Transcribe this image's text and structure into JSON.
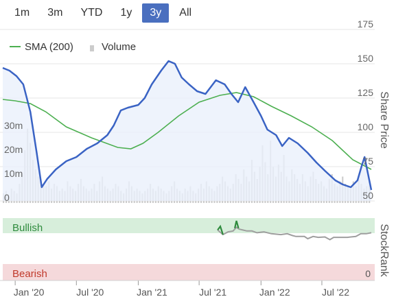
{
  "range_tabs": {
    "items": [
      {
        "label": "1m"
      },
      {
        "label": "3m"
      },
      {
        "label": "YTD"
      },
      {
        "label": "1y"
      },
      {
        "label": "3y"
      },
      {
        "label": "All"
      }
    ],
    "active_index": 4
  },
  "colors": {
    "price_line": "#3a63c4",
    "price_area": "#eaf0fb",
    "sma_line": "#4caf50",
    "volume": "#cccccc",
    "bullish_band": "#d7eedb",
    "bearish_band": "#f5d9db",
    "bullish_text": "#2e8b3d",
    "bearish_text": "#c0392b",
    "stockrank_line": "#9e9e9e",
    "stockrank_bullish": "#2e8b3d",
    "active_tab": "#4a6fbf"
  },
  "chart_data": {
    "type": "line",
    "legend": {
      "sma_label": "SMA (200)",
      "volume_label": "Volume",
      "placement": "top-left"
    },
    "price_axis": {
      "title": "Share Price",
      "ticks": [
        "175",
        "150",
        "125",
        "100",
        "75",
        "50"
      ],
      "tick_values": [
        175,
        150,
        125,
        100,
        75,
        50
      ],
      "ylim": [
        50,
        175
      ]
    },
    "volume_axis": {
      "ticks": [
        "30m",
        "20m",
        "10m",
        "0"
      ],
      "tick_values": [
        30,
        20,
        10,
        0
      ],
      "unit": "m",
      "ylim": [
        0,
        40
      ]
    },
    "stockrank": {
      "title": "StockRank",
      "bullish_label": "Bullish",
      "bearish_label": "Bearish",
      "zero_label": "0",
      "ylim": [
        0,
        100
      ]
    },
    "x_axis": {
      "ticks": [
        "Jan '20",
        "Jul '20",
        "Jan '21",
        "Jul '21",
        "Jan '22",
        "Jul '22"
      ],
      "tick_dates": [
        "2020-01-01",
        "2020-07-01",
        "2021-01-01",
        "2021-07-01",
        "2022-01-01",
        "2022-07-01"
      ],
      "start": "2019-11-25",
      "end": "2022-11-25"
    },
    "series": [
      {
        "name": "price",
        "points": [
          [
            "2019-11-25",
            147
          ],
          [
            "2019-12-15",
            145
          ],
          [
            "2020-01-05",
            141
          ],
          [
            "2020-01-25",
            135
          ],
          [
            "2020-02-15",
            115
          ],
          [
            "2020-03-05",
            85
          ],
          [
            "2020-03-20",
            60
          ],
          [
            "2020-04-05",
            66
          ],
          [
            "2020-05-01",
            73
          ],
          [
            "2020-06-01",
            79
          ],
          [
            "2020-07-01",
            82
          ],
          [
            "2020-08-01",
            88
          ],
          [
            "2020-09-01",
            92
          ],
          [
            "2020-10-01",
            98
          ],
          [
            "2020-10-20",
            105
          ],
          [
            "2020-11-10",
            116
          ],
          [
            "2020-12-01",
            118
          ],
          [
            "2021-01-01",
            120
          ],
          [
            "2021-01-20",
            125
          ],
          [
            "2021-02-10",
            135
          ],
          [
            "2021-03-10",
            145
          ],
          [
            "2021-04-01",
            152
          ],
          [
            "2021-04-20",
            150
          ],
          [
            "2021-05-10",
            140
          ],
          [
            "2021-06-01",
            135
          ],
          [
            "2021-06-25",
            130
          ],
          [
            "2021-07-20",
            128
          ],
          [
            "2021-08-20",
            138
          ],
          [
            "2021-09-15",
            135
          ],
          [
            "2021-10-05",
            128
          ],
          [
            "2021-10-25",
            122
          ],
          [
            "2021-11-15",
            133
          ],
          [
            "2021-12-10",
            122
          ],
          [
            "2022-01-01",
            112
          ],
          [
            "2022-01-20",
            102
          ],
          [
            "2022-02-15",
            98
          ],
          [
            "2022-03-05",
            90
          ],
          [
            "2022-03-25",
            96
          ],
          [
            "2022-04-20",
            92
          ],
          [
            "2022-05-20",
            85
          ],
          [
            "2022-06-15",
            78
          ],
          [
            "2022-07-10",
            72
          ],
          [
            "2022-08-10",
            65
          ],
          [
            "2022-09-01",
            62
          ],
          [
            "2022-09-25",
            60
          ],
          [
            "2022-10-15",
            65
          ],
          [
            "2022-10-28",
            76
          ],
          [
            "2022-11-05",
            82
          ],
          [
            "2022-11-15",
            70
          ],
          [
            "2022-11-25",
            58
          ]
        ]
      },
      {
        "name": "SMA (200)",
        "points": [
          [
            "2019-11-25",
            124
          ],
          [
            "2020-01-01",
            123
          ],
          [
            "2020-02-15",
            121
          ],
          [
            "2020-04-01",
            115
          ],
          [
            "2020-06-01",
            104
          ],
          [
            "2020-08-15",
            96
          ],
          [
            "2020-11-01",
            89
          ],
          [
            "2020-12-10",
            88
          ],
          [
            "2021-01-15",
            92
          ],
          [
            "2021-03-01",
            100
          ],
          [
            "2021-05-01",
            112
          ],
          [
            "2021-07-01",
            122
          ],
          [
            "2021-09-01",
            127
          ],
          [
            "2021-10-20",
            129
          ],
          [
            "2021-12-10",
            126
          ],
          [
            "2022-02-01",
            119
          ],
          [
            "2022-04-01",
            112
          ],
          [
            "2022-06-01",
            104
          ],
          [
            "2022-08-01",
            94
          ],
          [
            "2022-10-01",
            80
          ],
          [
            "2022-11-25",
            73
          ]
        ]
      },
      {
        "name": "Volume",
        "values_in_millions": [
          4,
          5,
          3,
          6,
          5,
          4,
          8,
          12,
          22,
          31,
          25,
          18,
          14,
          11,
          9,
          8,
          7,
          9,
          6,
          8,
          7,
          5,
          6,
          5,
          9,
          7,
          6,
          5,
          8,
          10,
          7,
          6,
          5,
          6,
          8,
          5,
          9,
          11,
          7,
          6,
          5,
          6,
          8,
          7,
          5,
          4,
          6,
          9,
          7,
          5,
          6,
          5,
          4,
          5,
          6,
          8,
          6,
          5,
          7,
          6,
          5,
          4,
          5,
          7,
          9,
          6,
          5,
          4,
          6,
          5,
          7,
          5,
          4,
          6,
          8,
          6,
          9,
          7,
          6,
          5,
          7,
          8,
          11,
          9,
          7,
          6,
          8,
          12,
          10,
          8,
          14,
          11,
          9,
          18,
          13,
          10,
          15,
          24,
          17,
          12,
          26,
          15,
          11,
          16,
          13,
          20,
          11,
          9,
          14,
          12,
          10,
          8,
          12,
          9,
          7,
          11,
          13,
          10,
          8,
          9,
          7,
          6,
          10,
          12,
          8,
          7,
          9,
          11,
          8,
          7,
          6,
          9,
          7,
          10,
          8,
          6,
          7,
          9
        ]
      },
      {
        "name": "StockRank",
        "points": [
          [
            "2021-08-25",
            74
          ],
          [
            "2021-09-10",
            64
          ],
          [
            "2021-09-25",
            70
          ],
          [
            "2021-10-10",
            72
          ],
          [
            "2021-10-20",
            80
          ],
          [
            "2021-10-28",
            76
          ],
          [
            "2021-11-08",
            74
          ],
          [
            "2021-11-20",
            72
          ],
          [
            "2021-12-05",
            72
          ],
          [
            "2021-12-20",
            68
          ],
          [
            "2022-01-10",
            70
          ],
          [
            "2022-02-01",
            66
          ],
          [
            "2022-03-01",
            64
          ],
          [
            "2022-03-20",
            66
          ],
          [
            "2022-04-05",
            62
          ],
          [
            "2022-04-15",
            60
          ],
          [
            "2022-05-10",
            60
          ],
          [
            "2022-05-20",
            55
          ],
          [
            "2022-06-05",
            60
          ],
          [
            "2022-06-20",
            58
          ],
          [
            "2022-07-10",
            59
          ],
          [
            "2022-07-25",
            53
          ],
          [
            "2022-08-05",
            58
          ],
          [
            "2022-08-20",
            58
          ],
          [
            "2022-09-15",
            58
          ],
          [
            "2022-10-10",
            60
          ],
          [
            "2022-10-25",
            66
          ],
          [
            "2022-11-10",
            66
          ],
          [
            "2022-11-25",
            68
          ]
        ],
        "bullish_segments": [
          [
            [
              "2021-08-25",
              74
            ],
            [
              "2021-09-02",
              82
            ],
            [
              "2021-09-10",
              64
            ]
          ],
          [
            [
              "2021-10-15",
              78
            ],
            [
              "2021-10-20",
              94
            ],
            [
              "2021-10-26",
              78
            ]
          ]
        ]
      }
    ]
  }
}
